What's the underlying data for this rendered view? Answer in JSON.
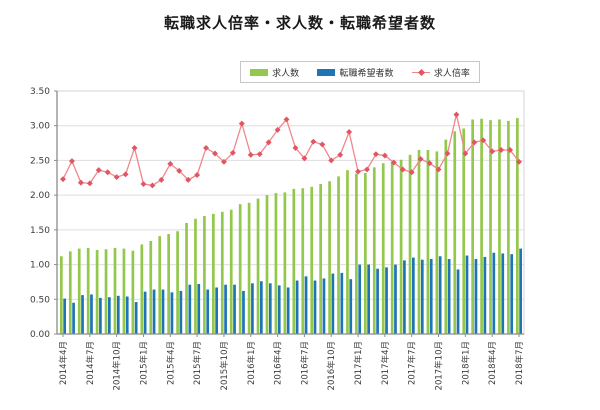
{
  "title": "転職求人倍率・求人数・転職希望者数",
  "legend": {
    "jobs_label": "求人数",
    "applicants_label": "転職希望者数",
    "ratio_label": "求人倍率"
  },
  "colors": {
    "jobs_bar": "#94c84c",
    "applicants_bar": "#1f74b5",
    "ratio_line": "#f0878d",
    "ratio_marker": "#e15663",
    "grid": "#dedede",
    "axis": "#8c8c8c",
    "border": "#d6d6d6",
    "tick_text": "#3c3c3c"
  },
  "chart_data": {
    "type": "bar",
    "subtype": "combo-bar-line",
    "title": "転職求人倍率・求人数・転職希望者数",
    "xlabel": "",
    "ylabel": "",
    "ylim": [
      0,
      3.5
    ],
    "y_tick_step": 0.5,
    "y_tick_labels": [
      "0.00",
      "0.50",
      "1.00",
      "1.50",
      "2.00",
      "2.50",
      "3.00",
      "3.50"
    ],
    "x_tick_every": 3,
    "x_tick_labels": [
      "2014年4月",
      "2014年7月",
      "2014年10月",
      "2015年1月",
      "2015年4月",
      "2015年7月",
      "2015年10月",
      "2016年1月",
      "2016年4月",
      "2016年7月",
      "2016年10月",
      "2017年1月",
      "2017年4月",
      "2017年7月",
      "2017年10月",
      "2018年1月",
      "2018年4月",
      "2018年7月"
    ],
    "grid": "horizontal",
    "legend_position": "top",
    "months": [
      "2014年4月",
      "2014年5月",
      "2014年6月",
      "2014年7月",
      "2014年8月",
      "2014年9月",
      "2014年10月",
      "2014年11月",
      "2014年12月",
      "2015年1月",
      "2015年2月",
      "2015年3月",
      "2015年4月",
      "2015年5月",
      "2015年6月",
      "2015年7月",
      "2015年8月",
      "2015年9月",
      "2015年10月",
      "2015年11月",
      "2015年12月",
      "2016年1月",
      "2016年2月",
      "2016年3月",
      "2016年4月",
      "2016年5月",
      "2016年6月",
      "2016年7月",
      "2016年8月",
      "2016年9月",
      "2016年10月",
      "2016年11月",
      "2016年12月",
      "2017年1月",
      "2017年2月",
      "2017年3月",
      "2017年4月",
      "2017年5月",
      "2017年6月",
      "2017年7月",
      "2017年8月",
      "2017年9月",
      "2017年10月",
      "2017年11月",
      "2017年12月",
      "2018年1月",
      "2018年2月",
      "2018年3月",
      "2018年4月",
      "2018年5月",
      "2018年6月",
      "2018年7月"
    ],
    "series": [
      {
        "name": "求人数",
        "type": "bar",
        "color": "#94c84c",
        "values": [
          1.12,
          1.19,
          1.23,
          1.24,
          1.21,
          1.22,
          1.24,
          1.23,
          1.2,
          1.29,
          1.34,
          1.41,
          1.44,
          1.48,
          1.6,
          1.66,
          1.7,
          1.73,
          1.76,
          1.79,
          1.87,
          1.89,
          1.95,
          2.0,
          2.03,
          2.04,
          2.09,
          2.1,
          2.12,
          2.16,
          2.2,
          2.27,
          2.36,
          2.31,
          2.32,
          2.4,
          2.46,
          2.47,
          2.51,
          2.58,
          2.65,
          2.65,
          2.63,
          2.8,
          2.92,
          2.96,
          3.09,
          3.1,
          3.08,
          3.09,
          3.07,
          3.11
        ]
      },
      {
        "name": "転職希望者数",
        "type": "bar",
        "color": "#1f74b5",
        "values": [
          0.51,
          0.45,
          0.56,
          0.57,
          0.52,
          0.53,
          0.55,
          0.54,
          0.46,
          0.61,
          0.64,
          0.64,
          0.6,
          0.62,
          0.71,
          0.72,
          0.64,
          0.67,
          0.71,
          0.71,
          0.62,
          0.73,
          0.76,
          0.73,
          0.7,
          0.67,
          0.77,
          0.83,
          0.77,
          0.8,
          0.87,
          0.88,
          0.79,
          1.0,
          1.0,
          0.94,
          0.96,
          1.0,
          1.06,
          1.1,
          1.07,
          1.08,
          1.12,
          1.08,
          0.93,
          1.13,
          1.08,
          1.11,
          1.17,
          1.16,
          1.15,
          1.23
        ]
      },
      {
        "name": "求人倍率",
        "type": "line",
        "color": "#f0878d",
        "marker_color": "#e15663",
        "values": [
          2.23,
          2.49,
          2.18,
          2.17,
          2.36,
          2.33,
          2.26,
          2.3,
          2.68,
          2.16,
          2.14,
          2.22,
          2.45,
          2.35,
          2.22,
          2.29,
          2.68,
          2.6,
          2.48,
          2.61,
          3.03,
          2.58,
          2.59,
          2.76,
          2.94,
          3.09,
          2.68,
          2.53,
          2.77,
          2.73,
          2.5,
          2.58,
          2.91,
          2.34,
          2.37,
          2.59,
          2.57,
          2.47,
          2.37,
          2.33,
          2.52,
          2.46,
          2.37,
          2.6,
          3.16,
          2.6,
          2.76,
          2.79,
          2.63,
          2.65,
          2.65,
          2.48
        ]
      }
    ]
  }
}
